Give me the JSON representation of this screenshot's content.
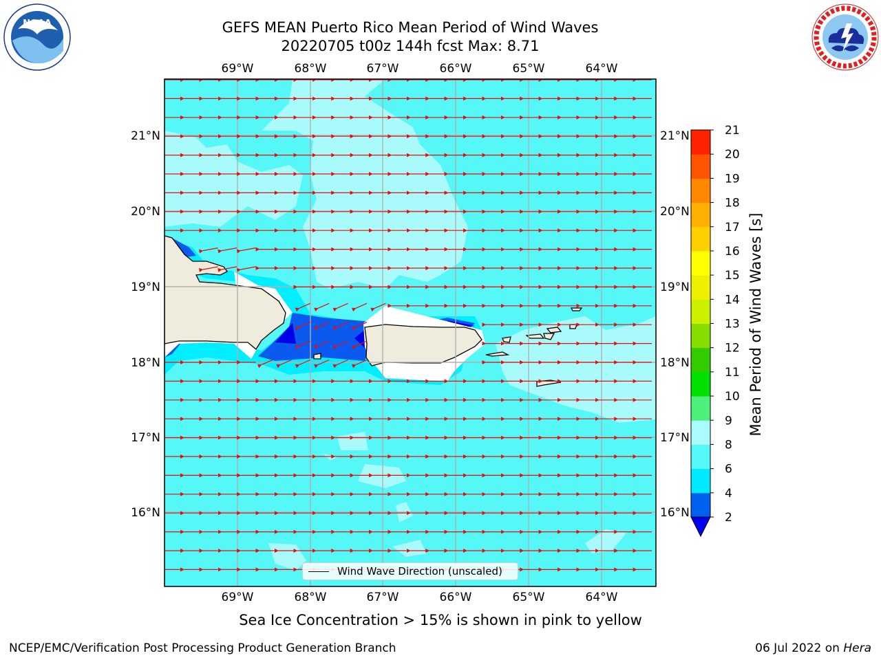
{
  "title": {
    "line1": "GEFS MEAN Puerto Rico Mean Period of Wind Waves",
    "line2": "20220705 t00z 144h fcst   Max: 8.71"
  },
  "logos": {
    "left": {
      "name": "NOAA",
      "text": "NOAA",
      "ring_text": "NATIONAL OCEANIC AND ATMOSPHERIC ADMINISTRATION · U.S. DEPARTMENT OF COMMERCE"
    },
    "right": {
      "name": "National Weather Service",
      "ring_text": "NATIONAL WEATHER SERVICE"
    }
  },
  "map": {
    "lon_labels": [
      "69°W",
      "68°W",
      "67°W",
      "66°W",
      "65°W",
      "64°W"
    ],
    "lat_labels": [
      "21°N",
      "20°N",
      "19°N",
      "18°N",
      "17°N",
      "16°N"
    ],
    "ocean_color": "#55f7f7",
    "light_color": "#a9fbfb",
    "dark_color": "#0a5af0",
    "land_color": "#efecdd",
    "arrow_color": "#e01010",
    "arrow_direction": "westward"
  },
  "legend": {
    "label": "Wind Wave Direction (unscaled)"
  },
  "colorbar": {
    "label": "Mean Period of Wind Waves [s]",
    "ticks": [
      "2",
      "4",
      "6",
      "8",
      "9",
      "10",
      "11",
      "12",
      "13",
      "14",
      "15",
      "16",
      "17",
      "18",
      "19",
      "20",
      "21"
    ],
    "colors": [
      "#0060f0",
      "#00eaff",
      "#55f7f7",
      "#aafbfb",
      "#4df07a",
      "#00e000",
      "#33cc00",
      "#88dd00",
      "#ccf000",
      "#eef000",
      "#ffff00",
      "#ffd000",
      "#ffb000",
      "#ff8800",
      "#ff5500",
      "#ff2200"
    ],
    "under_color": "#0000f0"
  },
  "caption": "Sea Ice Concentration > 15% is shown in pink to yellow",
  "footer": {
    "left": "NCEP/EMC/Verification Post Processing Product Generation Branch",
    "right_date": "06 Jul 2022 on",
    "right_host": "Hera"
  }
}
